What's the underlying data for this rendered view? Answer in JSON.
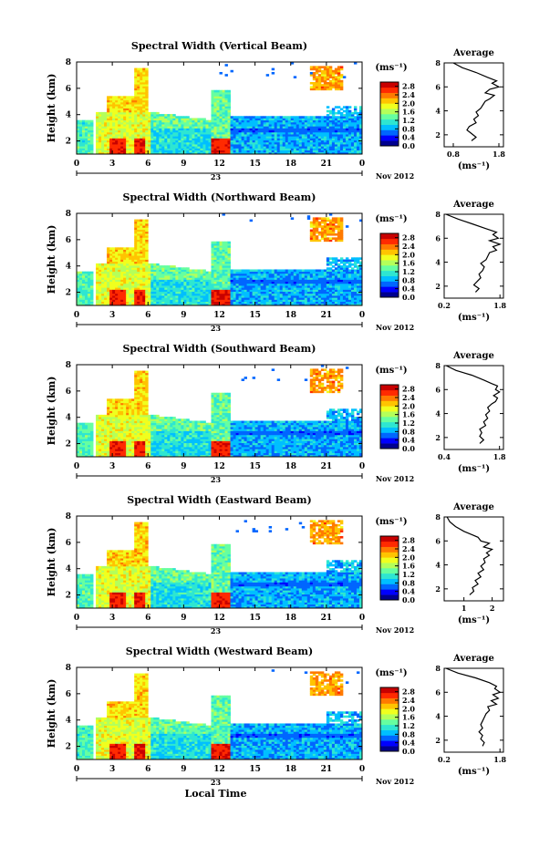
{
  "figure": {
    "xlabel": "Local Time",
    "date_label": "Nov 2012",
    "day_label": "23",
    "colorbar_unit": "(ms⁻¹)",
    "colorbar_ticks": [
      "2.8",
      "2.4",
      "2.0",
      "1.6",
      "1.2",
      "0.8",
      "0.4",
      "0.0"
    ],
    "x_ticks": [
      "0",
      "3",
      "6",
      "9",
      "12",
      "15",
      "18",
      "21",
      "0"
    ],
    "y_ticks": [
      "2",
      "4",
      "6",
      "8"
    ],
    "ylabel": "Height (km)",
    "avg_title": "Average",
    "avg_xlabel": "(ms⁻¹)",
    "colormap": [
      "#00008f",
      "#0000ff",
      "#0066ff",
      "#00bfff",
      "#2ee6d1",
      "#66ffa0",
      "#b4ff5a",
      "#f0ff1e",
      "#ffc400",
      "#ff7a00",
      "#ff2a00",
      "#c80000"
    ]
  },
  "chart_data": [
    {
      "type": "heatmap",
      "title": "Spectral Width (Vertical Beam)",
      "xlabel": "",
      "ylabel": "Height (km)",
      "xlim": [
        0,
        24
      ],
      "ylim": [
        1,
        8
      ],
      "colorbar_range": [
        0.0,
        3.0
      ],
      "avg_profile": {
        "xlim": [
          0.6,
          1.9
        ],
        "x_ticks": [
          "0.8",
          "1.8"
        ],
        "ylim": [
          1,
          8
        ],
        "y_ticks": [
          "2",
          "4",
          "6",
          "8"
        ],
        "x": [
          1.2,
          1.3,
          1.2,
          1.1,
          1.15,
          1.3,
          1.25,
          1.35,
          1.3,
          1.4,
          1.45,
          1.5,
          1.6,
          1.7,
          1.5,
          1.6,
          1.8,
          1.65,
          1.75,
          1.55,
          1.3,
          1.0,
          0.8
        ],
        "y": [
          1.5,
          1.8,
          2.1,
          2.4,
          2.7,
          3.0,
          3.3,
          3.6,
          3.9,
          4.2,
          4.5,
          4.8,
          5.0,
          5.3,
          5.5,
          5.8,
          6.0,
          6.3,
          6.5,
          6.8,
          7.2,
          7.6,
          8.0
        ]
      }
    },
    {
      "type": "heatmap",
      "title": "Spectral Width (Northward Beam)",
      "xlabel": "",
      "ylabel": "Height (km)",
      "xlim": [
        0,
        24
      ],
      "ylim": [
        1,
        8
      ],
      "colorbar_range": [
        0.0,
        3.0
      ],
      "avg_profile": {
        "xlim": [
          0.2,
          1.9
        ],
        "x_ticks": [
          "0.2",
          "1.8"
        ],
        "ylim": [
          1,
          8
        ],
        "y_ticks": [
          "2",
          "4",
          "6",
          "8"
        ],
        "x": [
          1.1,
          1.2,
          1.05,
          1.15,
          1.25,
          1.2,
          1.3,
          1.35,
          1.25,
          1.4,
          1.45,
          1.5,
          1.7,
          1.6,
          1.8,
          1.5,
          1.75,
          1.6,
          1.7,
          1.4,
          1.0,
          0.6,
          0.25
        ],
        "y": [
          1.5,
          1.8,
          2.1,
          2.4,
          2.7,
          3.0,
          3.3,
          3.6,
          3.9,
          4.2,
          4.5,
          4.8,
          5.0,
          5.3,
          5.5,
          5.8,
          6.0,
          6.3,
          6.5,
          6.8,
          7.2,
          7.6,
          8.0
        ]
      }
    },
    {
      "type": "heatmap",
      "title": "Spectral Width (Southward Beam)",
      "xlabel": "",
      "ylabel": "Height (km)",
      "xlim": [
        0,
        24
      ],
      "ylim": [
        1,
        8
      ],
      "colorbar_range": [
        0.0,
        3.0
      ],
      "avg_profile": {
        "xlim": [
          0.4,
          1.9
        ],
        "x_ticks": [
          "0.4",
          "1.8"
        ],
        "ylim": [
          1,
          8
        ],
        "y_ticks": [
          "2",
          "4",
          "6",
          "8"
        ],
        "x": [
          1.3,
          1.4,
          1.3,
          1.35,
          1.3,
          1.45,
          1.4,
          1.5,
          1.45,
          1.55,
          1.5,
          1.6,
          1.7,
          1.75,
          1.65,
          1.8,
          1.7,
          1.75,
          1.6,
          1.4,
          1.1,
          0.7,
          0.45
        ],
        "y": [
          1.5,
          1.8,
          2.1,
          2.4,
          2.7,
          3.0,
          3.3,
          3.6,
          3.9,
          4.2,
          4.5,
          4.8,
          5.0,
          5.3,
          5.5,
          5.8,
          6.0,
          6.3,
          6.5,
          6.8,
          7.2,
          7.6,
          8.0
        ]
      }
    },
    {
      "type": "heatmap",
      "title": "Spectral Width (Eastward Beam)",
      "xlabel": "",
      "ylabel": "Height (km)",
      "xlim": [
        0,
        24
      ],
      "ylim": [
        1,
        8
      ],
      "colorbar_range": [
        0.0,
        3.0
      ],
      "avg_profile": {
        "xlim": [
          0.3,
          2.4
        ],
        "x_ticks": [
          "1",
          "2"
        ],
        "ylim": [
          1,
          8
        ],
        "y_ticks": [
          "2",
          "4",
          "6",
          "8"
        ],
        "x": [
          1.2,
          1.35,
          1.3,
          1.5,
          1.4,
          1.6,
          1.5,
          1.7,
          1.6,
          1.75,
          1.7,
          1.9,
          1.8,
          2.0,
          1.7,
          1.9,
          1.6,
          1.5,
          1.3,
          1.0,
          0.7,
          0.5,
          0.4
        ],
        "y": [
          1.5,
          1.8,
          2.1,
          2.4,
          2.7,
          3.0,
          3.3,
          3.6,
          3.9,
          4.2,
          4.5,
          4.8,
          5.0,
          5.3,
          5.5,
          5.8,
          6.0,
          6.3,
          6.5,
          6.8,
          7.2,
          7.6,
          8.0
        ]
      }
    },
    {
      "type": "heatmap",
      "title": "Spectral Width (Westward Beam)",
      "xlabel": "Local Time",
      "ylabel": "Height (km)",
      "xlim": [
        0,
        24
      ],
      "ylim": [
        1,
        8
      ],
      "colorbar_range": [
        0.0,
        3.0
      ],
      "avg_profile": {
        "xlim": [
          0.2,
          1.9
        ],
        "x_ticks": [
          "0.2",
          "1.8"
        ],
        "ylim": [
          1,
          8
        ],
        "y_ticks": [
          "2",
          "4",
          "6",
          "8"
        ],
        "x": [
          1.3,
          1.35,
          1.25,
          1.3,
          1.2,
          1.3,
          1.25,
          1.3,
          1.35,
          1.4,
          1.5,
          1.45,
          1.7,
          1.55,
          1.75,
          1.6,
          1.8,
          1.65,
          1.7,
          1.5,
          1.1,
          0.6,
          0.25
        ],
        "y": [
          1.5,
          1.8,
          2.1,
          2.4,
          2.7,
          3.0,
          3.3,
          3.6,
          3.9,
          4.2,
          4.5,
          4.8,
          5.0,
          5.3,
          5.5,
          5.8,
          6.0,
          6.3,
          6.5,
          6.8,
          7.2,
          7.6,
          8.0
        ]
      }
    }
  ]
}
